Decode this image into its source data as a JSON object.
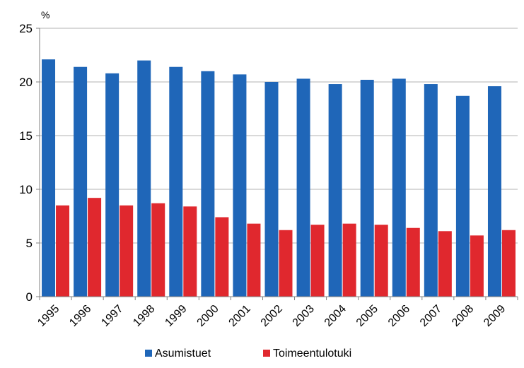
{
  "chart_data": {
    "type": "bar",
    "unit_label": "%",
    "categories": [
      "1995",
      "1996",
      "1997",
      "1998",
      "1999",
      "2000",
      "2001",
      "2002",
      "2003",
      "2004",
      "2005",
      "2006",
      "2007",
      "2008",
      "2009"
    ],
    "series": [
      {
        "name": "Asumistuet",
        "color": "#1f66b8",
        "values": [
          22.1,
          21.4,
          20.8,
          22.0,
          21.4,
          21.0,
          20.7,
          20.0,
          20.3,
          19.8,
          20.2,
          20.3,
          19.8,
          18.7,
          19.6
        ]
      },
      {
        "name": "Toimeentulotuki",
        "color": "#e0282e",
        "values": [
          8.5,
          9.2,
          8.5,
          8.7,
          8.4,
          7.4,
          6.8,
          6.2,
          6.7,
          6.8,
          6.7,
          6.4,
          6.1,
          5.7,
          6.2
        ]
      }
    ],
    "ylim": [
      0,
      25
    ],
    "yticks": [
      0,
      5,
      10,
      15,
      20,
      25
    ],
    "grid": true,
    "legend": "bottom"
  }
}
